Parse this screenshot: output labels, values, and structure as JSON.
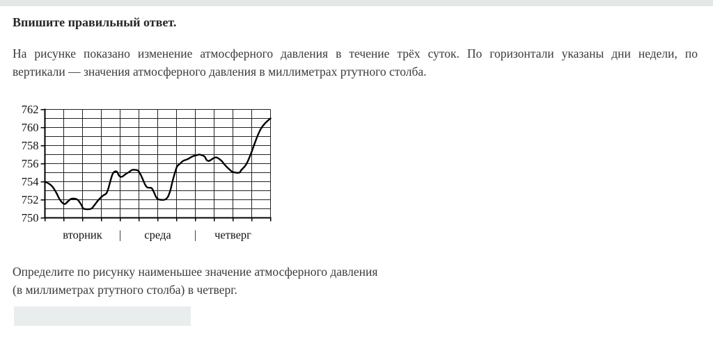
{
  "page": {
    "background": "#ffffff",
    "top_bar_color": "#e3e7e8"
  },
  "header": {
    "title": "Впишите правильный ответ."
  },
  "intro": {
    "line1": "На рисунке показано изменение атмосферного давления в течение трёх суток. По горизонтали указаны дни недели, по",
    "line2": "вертикали — значения атмосферного давления в миллиметрах ртутного столба."
  },
  "question": {
    "text": "Определите по рисунку наименьшее значение атмосферного давления\n(в миллиметрах ртутного столба) в четверг."
  },
  "answer": {
    "value": ""
  },
  "chart_data": {
    "type": "line",
    "title": "",
    "xlabel": "",
    "ylabel": "",
    "ylim": [
      750,
      762
    ],
    "yticks": [
      762,
      760,
      758,
      756,
      754,
      752,
      750
    ],
    "y_minor_step": 1,
    "x_hours_range": [
      0,
      72
    ],
    "x_minor_step_hours": 6,
    "grid": true,
    "grid_color": "#222222",
    "axis_color": "#000000",
    "curve_color": "#000000",
    "day_labels": [
      "вторник",
      "среда",
      "четверг"
    ],
    "day_separator": "|",
    "series": [
      {
        "name": "pressure-mmhg",
        "points": [
          [
            0,
            754.0
          ],
          [
            1.2,
            753.8
          ],
          [
            2.4,
            753.45
          ],
          [
            3.6,
            752.8
          ],
          [
            4.7,
            752.05
          ],
          [
            5.8,
            751.6
          ],
          [
            6.5,
            751.55
          ],
          [
            7.6,
            751.9
          ],
          [
            8.4,
            752.1
          ],
          [
            9.8,
            752.1
          ],
          [
            10.6,
            751.95
          ],
          [
            11.7,
            751.4
          ],
          [
            12.4,
            751.0
          ],
          [
            14.7,
            751.0
          ],
          [
            15.8,
            751.4
          ],
          [
            16.9,
            751.9
          ],
          [
            18,
            752.3
          ],
          [
            18.7,
            752.5
          ],
          [
            19.6,
            752.7
          ],
          [
            20.2,
            753.2
          ],
          [
            21,
            754.2
          ],
          [
            21.6,
            754.85
          ],
          [
            22.2,
            755.1
          ],
          [
            23,
            755.1
          ],
          [
            23.7,
            754.65
          ],
          [
            24.6,
            754.55
          ],
          [
            25.8,
            754.85
          ],
          [
            27,
            755.1
          ],
          [
            27.8,
            755.3
          ],
          [
            29,
            755.3
          ],
          [
            29.8,
            755.2
          ],
          [
            30.6,
            754.75
          ],
          [
            31.3,
            754.2
          ],
          [
            32.1,
            753.6
          ],
          [
            32.8,
            753.35
          ],
          [
            34,
            753.3
          ],
          [
            34.7,
            752.9
          ],
          [
            35.5,
            752.3
          ],
          [
            36.2,
            752.05
          ],
          [
            38.1,
            752.0
          ],
          [
            39.2,
            752.3
          ],
          [
            40,
            753.0
          ],
          [
            40.7,
            754.0
          ],
          [
            41.5,
            755.0
          ],
          [
            42.2,
            755.7
          ],
          [
            43,
            755.95
          ],
          [
            44.1,
            756.3
          ],
          [
            45.6,
            756.5
          ],
          [
            47.1,
            756.8
          ],
          [
            48.6,
            756.95
          ],
          [
            49.4,
            757.0
          ],
          [
            50.9,
            756.8
          ],
          [
            51.6,
            756.4
          ],
          [
            52.4,
            756.3
          ],
          [
            53.8,
            756.6
          ],
          [
            54.6,
            756.7
          ],
          [
            55.3,
            756.6
          ],
          [
            56.4,
            756.3
          ],
          [
            57.2,
            755.95
          ],
          [
            58.3,
            755.55
          ],
          [
            59.4,
            755.2
          ],
          [
            60.1,
            755.05
          ],
          [
            62,
            755.0
          ],
          [
            62.7,
            755.3
          ],
          [
            63.8,
            755.7
          ],
          [
            64.6,
            756.15
          ],
          [
            65.7,
            757.05
          ],
          [
            66.8,
            758.1
          ],
          [
            67.9,
            759.1
          ],
          [
            69,
            759.9
          ],
          [
            70.1,
            760.4
          ],
          [
            71.6,
            760.9
          ],
          [
            72,
            761.0
          ]
        ]
      }
    ]
  }
}
